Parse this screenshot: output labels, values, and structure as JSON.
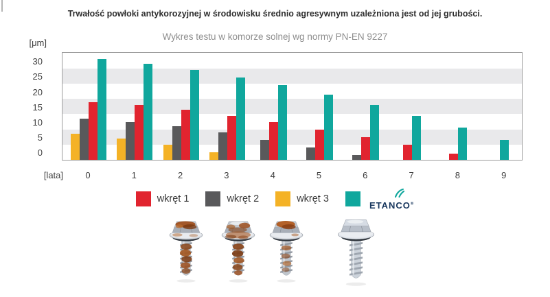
{
  "title": "Trwałość powłoki antykorozyjnej w środowisku średnio agresywnym uzależniona jest od jej grubości.",
  "subtitle": "Wykres testu w komorze solnej wg normy PN-EN 9227",
  "axes": {
    "y_unit": "[μm]",
    "x_unit": "[lata]"
  },
  "chart_data": {
    "type": "bar",
    "title": "Trwałość powłoki antykorozyjnej w środowisku średnio agresywnym uzależniona jest od jej grubości.",
    "subtitle": "Wykres testu w komorze solnej wg normy PN-EN 9227",
    "categories": [
      "0",
      "1",
      "2",
      "3",
      "4",
      "5",
      "6",
      "7",
      "8",
      "9"
    ],
    "xlabel": "[lata]",
    "ylabel": "[μm]",
    "ylim": [
      0,
      35
    ],
    "yticks": [
      0,
      5,
      10,
      15,
      20,
      25,
      30
    ],
    "grid_stripes": [
      [
        5,
        10
      ],
      [
        15,
        20
      ],
      [
        25,
        30
      ]
    ],
    "stripe_color": "#e9e9eb",
    "bar_display_order": [
      2,
      1,
      0,
      3
    ],
    "legend_position": "bottom",
    "series": [
      {
        "name": "wkręt 1",
        "color": "#e1242f",
        "values": [
          19,
          18,
          16.5,
          14.5,
          12.5,
          10,
          7.5,
          5,
          2,
          0
        ]
      },
      {
        "name": "wkręt 2",
        "color": "#59595b",
        "values": [
          13.5,
          12.5,
          11,
          9,
          6.5,
          4,
          1.5,
          0,
          0,
          0
        ]
      },
      {
        "name": "wkręt 3",
        "color": "#f4b226",
        "values": [
          8.5,
          7,
          5,
          2.5,
          0,
          0,
          0,
          0,
          0,
          0
        ]
      },
      {
        "name": "ETANCO",
        "color": "#10a79d",
        "values": [
          33,
          31.5,
          29.5,
          27,
          24.5,
          21.5,
          18,
          14.5,
          10.5,
          6.5
        ]
      }
    ]
  },
  "legend": {
    "items": [
      {
        "label": "wkręt 1",
        "color": "#e1242f",
        "type": "swatch"
      },
      {
        "label": "wkręt 2",
        "color": "#59595b",
        "type": "swatch"
      },
      {
        "label": "wkręt 3",
        "color": "#f4b226",
        "type": "swatch"
      },
      {
        "label": "ETANCO",
        "color": "#10a79d",
        "type": "swatch-logo",
        "registered_mark": "®"
      }
    ]
  },
  "photos": {
    "items": [
      {
        "name": "screw-sample-1",
        "condition": "corroded"
      },
      {
        "name": "screw-sample-2",
        "condition": "heavily-corroded"
      },
      {
        "name": "screw-sample-3",
        "condition": "corroded"
      },
      {
        "name": "screw-sample-4",
        "condition": "clean"
      }
    ]
  },
  "colors": {
    "title": "#2e2e2e",
    "subtitle": "#8d8d8d",
    "axis_text": "#3f3f3f",
    "plot_border": "#9b9b9b",
    "logo_navy": "#17365d"
  }
}
